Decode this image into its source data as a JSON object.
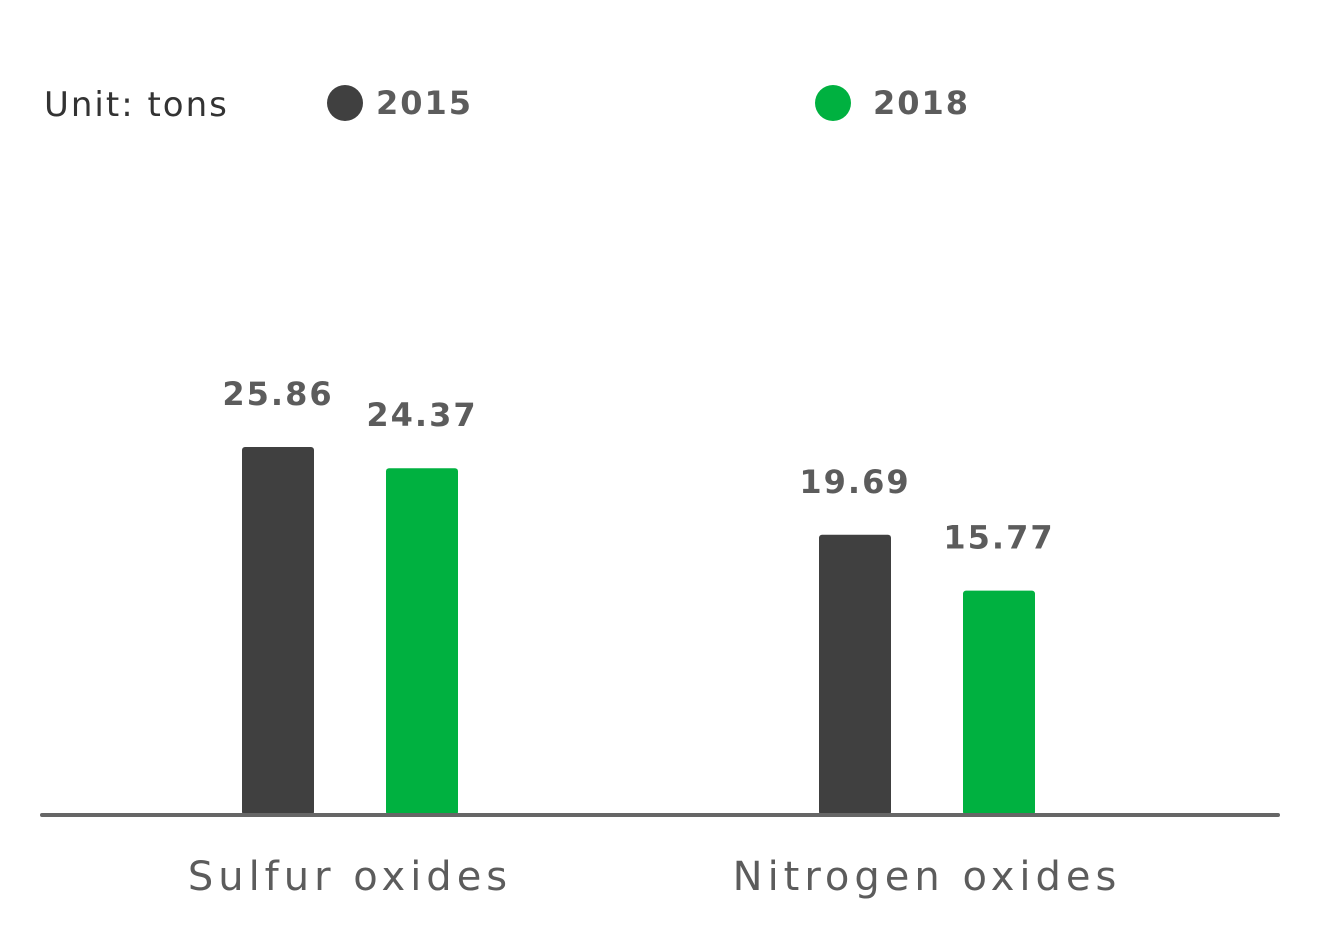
{
  "chart_data": {
    "type": "bar",
    "unit_label": "Unit: tons",
    "categories": [
      "Sulfur oxides",
      "Nitrogen oxides"
    ],
    "series": [
      {
        "name": "2015",
        "color": "#404040",
        "values": [
          25.86,
          19.69
        ]
      },
      {
        "name": "2018",
        "color": "#00b140",
        "values": [
          24.37,
          15.77
        ]
      }
    ],
    "value_labels": [
      [
        "25.86",
        "19.69"
      ],
      [
        "24.37",
        "15.77"
      ]
    ],
    "legend_position": "top",
    "ylim": [
      0,
      25.86
    ],
    "grid": false,
    "axis_color": "#666666"
  }
}
